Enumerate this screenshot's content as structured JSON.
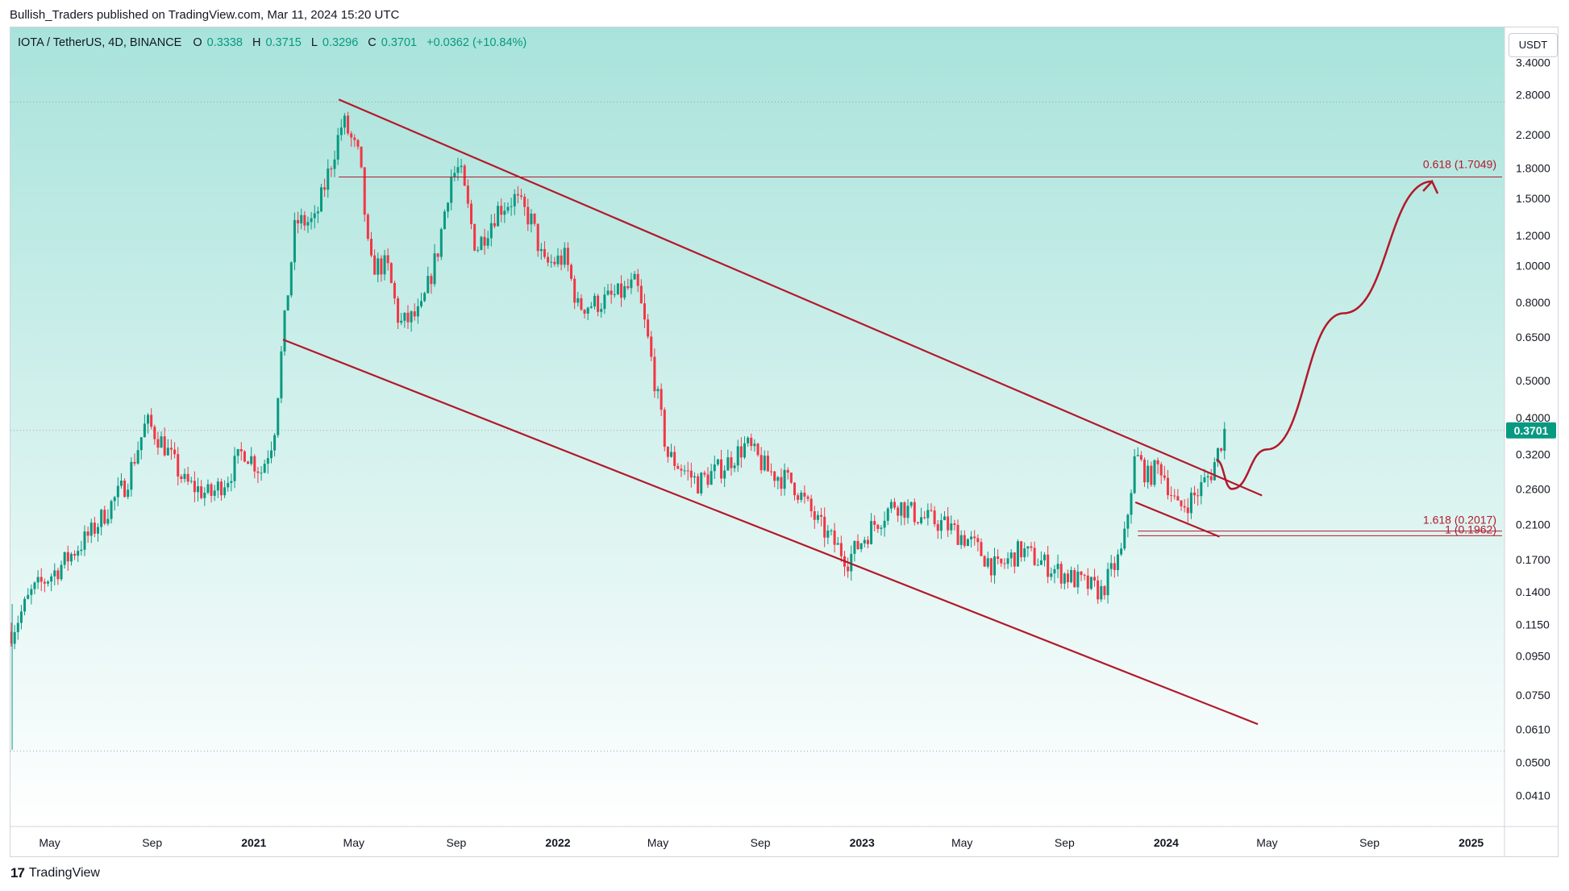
{
  "header": {
    "publisher": "Bullish_Traders published on TradingView.com, Mar 11, 2024 15:20 UTC"
  },
  "symbol": {
    "name": "IOTA / TetherUS, 4D, BINANCE",
    "open_label": "O",
    "open": "0.3338",
    "high_label": "H",
    "high": "0.3715",
    "low_label": "L",
    "low": "0.3296",
    "close_label": "C",
    "close": "0.3701",
    "change": "+0.0362 (+10.84%)"
  },
  "currency_button": "USDT",
  "current_price_label": "0.3701",
  "brand": {
    "logo": "17",
    "name": "TradingView"
  },
  "colors": {
    "up": "#089981",
    "down": "#f23645",
    "drawing": "#b2192b",
    "bg_top": "#a8e3db",
    "bg_bottom": "#ffffff",
    "price_tag": "#089981"
  },
  "chart_data": {
    "type": "candlestick",
    "scale": "log",
    "ylim": [
      0.034,
      4.2
    ],
    "x_range": [
      "2020-03-15",
      "2025-02-10"
    ],
    "x_tick_labels": [
      {
        "label": "May",
        "date": "2020-05-01",
        "bold": false
      },
      {
        "label": "Sep",
        "date": "2020-09-01",
        "bold": false
      },
      {
        "label": "2021",
        "date": "2021-01-01",
        "bold": true
      },
      {
        "label": "May",
        "date": "2021-05-01",
        "bold": false
      },
      {
        "label": "Sep",
        "date": "2021-09-01",
        "bold": false
      },
      {
        "label": "2022",
        "date": "2022-01-01",
        "bold": true
      },
      {
        "label": "May",
        "date": "2022-05-01",
        "bold": false
      },
      {
        "label": "Sep",
        "date": "2022-09-01",
        "bold": false
      },
      {
        "label": "2023",
        "date": "2023-01-01",
        "bold": true
      },
      {
        "label": "May",
        "date": "2023-05-01",
        "bold": false
      },
      {
        "label": "Sep",
        "date": "2023-09-01",
        "bold": false
      },
      {
        "label": "2024",
        "date": "2024-01-01",
        "bold": true
      },
      {
        "label": "May",
        "date": "2024-05-01",
        "bold": false
      },
      {
        "label": "Sep",
        "date": "2024-09-01",
        "bold": false
      },
      {
        "label": "2025",
        "date": "2025-01-01",
        "bold": true
      }
    ],
    "y_tick_labels": [
      "3.4000",
      "2.8000",
      "2.2000",
      "1.8000",
      "1.5000",
      "1.2000",
      "1.0000",
      "0.8000",
      "0.6500",
      "0.5000",
      "0.4000",
      "0.3200",
      "0.2600",
      "0.2100",
      "0.1700",
      "0.1400",
      "0.1150",
      "0.0950",
      "0.0750",
      "0.0610",
      "0.0500",
      "0.0410"
    ],
    "dotted_levels": [
      2.68,
      0.3701,
      0.0536
    ],
    "price_path": [
      [
        "2020-03-16",
        0.11
      ],
      [
        "2020-04-10",
        0.14
      ],
      [
        "2020-05-10",
        0.16
      ],
      [
        "2020-06-20",
        0.2
      ],
      [
        "2020-08-01",
        0.27
      ],
      [
        "2020-08-25",
        0.39
      ],
      [
        "2020-09-15",
        0.34
      ],
      [
        "2020-10-10",
        0.27
      ],
      [
        "2020-11-10",
        0.25
      ],
      [
        "2020-12-01",
        0.28
      ],
      [
        "2020-12-20",
        0.33
      ],
      [
        "2021-01-10",
        0.29
      ],
      [
        "2021-01-25",
        0.36
      ],
      [
        "2021-02-05",
        0.65
      ],
      [
        "2021-02-20",
        1.3
      ],
      [
        "2021-03-15",
        1.3
      ],
      [
        "2021-04-05",
        1.9
      ],
      [
        "2021-04-18",
        2.4
      ],
      [
        "2021-05-08",
        1.9
      ],
      [
        "2021-05-20",
        1.0
      ],
      [
        "2021-06-10",
        1.0
      ],
      [
        "2021-06-25",
        0.7
      ],
      [
        "2021-07-20",
        0.75
      ],
      [
        "2021-08-10",
        1.1
      ],
      [
        "2021-08-25",
        1.7
      ],
      [
        "2021-09-05",
        1.8
      ],
      [
        "2021-09-25",
        1.1
      ],
      [
        "2021-10-20",
        1.4
      ],
      [
        "2021-11-10",
        1.5
      ],
      [
        "2021-12-01",
        1.3
      ],
      [
        "2021-12-15",
        1.0
      ],
      [
        "2022-01-10",
        1.05
      ],
      [
        "2022-01-25",
        0.78
      ],
      [
        "2022-02-20",
        0.8
      ],
      [
        "2022-03-20",
        0.85
      ],
      [
        "2022-04-05",
        0.9
      ],
      [
        "2022-04-20",
        0.62
      ],
      [
        "2022-05-12",
        0.32
      ],
      [
        "2022-06-18",
        0.27
      ],
      [
        "2022-07-20",
        0.3
      ],
      [
        "2022-08-15",
        0.34
      ],
      [
        "2022-09-10",
        0.29
      ],
      [
        "2022-10-10",
        0.27
      ],
      [
        "2022-11-10",
        0.21
      ],
      [
        "2022-12-15",
        0.17
      ],
      [
        "2023-01-15",
        0.21
      ],
      [
        "2023-02-10",
        0.24
      ],
      [
        "2023-03-10",
        0.22
      ],
      [
        "2023-04-10",
        0.21
      ],
      [
        "2023-05-10",
        0.19
      ],
      [
        "2023-06-12",
        0.16
      ],
      [
        "2023-07-10",
        0.18
      ],
      [
        "2023-08-20",
        0.16
      ],
      [
        "2023-09-15",
        0.15
      ],
      [
        "2023-10-15",
        0.14
      ],
      [
        "2023-11-10",
        0.18
      ],
      [
        "2023-11-25",
        0.32
      ],
      [
        "2023-12-10",
        0.28
      ],
      [
        "2023-12-25",
        0.3
      ],
      [
        "2024-01-15",
        0.23
      ],
      [
        "2024-02-05",
        0.25
      ],
      [
        "2024-02-25",
        0.29
      ],
      [
        "2024-03-11",
        0.3701
      ]
    ],
    "drawings": {
      "channel_upper": [
        [
          "2021-04-13",
          2.72
        ],
        [
          "2024-04-25",
          0.25
        ]
      ],
      "channel_lower": [
        [
          "2021-02-05",
          0.64
        ],
        [
          "2024-04-20",
          0.063
        ]
      ],
      "wedge_lower": [
        [
          "2023-11-25",
          0.24
        ],
        [
          "2024-03-05",
          0.195
        ]
      ],
      "fib_0618": {
        "label": "0.618 (1.7049)",
        "price": 1.7049,
        "from": "2021-04-13"
      },
      "fib_1618": {
        "label": "1.618 (0.2017)",
        "price": 0.2017,
        "from": "2023-11-28"
      },
      "fib_1": {
        "label": "1 (0.1962)",
        "price": 0.1962,
        "from": "2023-11-28"
      },
      "projection": [
        [
          "2024-03-01",
          0.31
        ],
        [
          "2024-03-20",
          0.26
        ],
        [
          "2024-05-01",
          0.33
        ],
        [
          "2024-08-01",
          0.75
        ],
        [
          "2024-11-15",
          1.66
        ]
      ]
    }
  }
}
